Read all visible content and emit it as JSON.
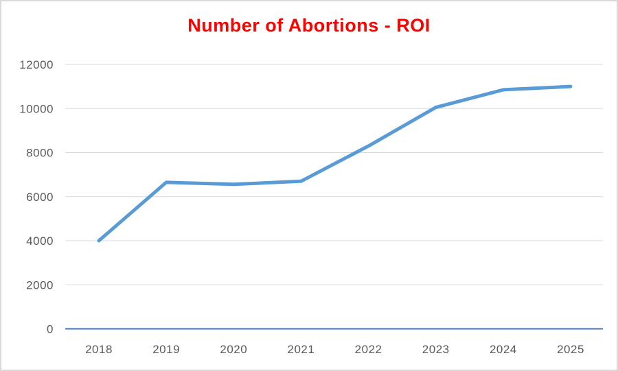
{
  "chart_data": {
    "type": "line",
    "title": "Number of Abortions - ROI",
    "categories": [
      "2018",
      "2019",
      "2020",
      "2021",
      "2022",
      "2023",
      "2024",
      "2025"
    ],
    "values": [
      4000,
      6650,
      6560,
      6700,
      8300,
      10050,
      10850,
      11000
    ],
    "xlabel": "",
    "ylabel": "",
    "ylim": [
      0,
      12000
    ],
    "yticks": [
      0,
      2000,
      4000,
      6000,
      8000,
      10000,
      12000
    ],
    "grid": true,
    "legend": false,
    "colors": {
      "title": "#FF0000",
      "line": "#5B9BD5",
      "axis_line": "#4472C4",
      "gridline": "#D9D9D9",
      "tick_label": "#595959",
      "background": "#FFFFFF",
      "chart_border": "#D9D9D9"
    }
  }
}
